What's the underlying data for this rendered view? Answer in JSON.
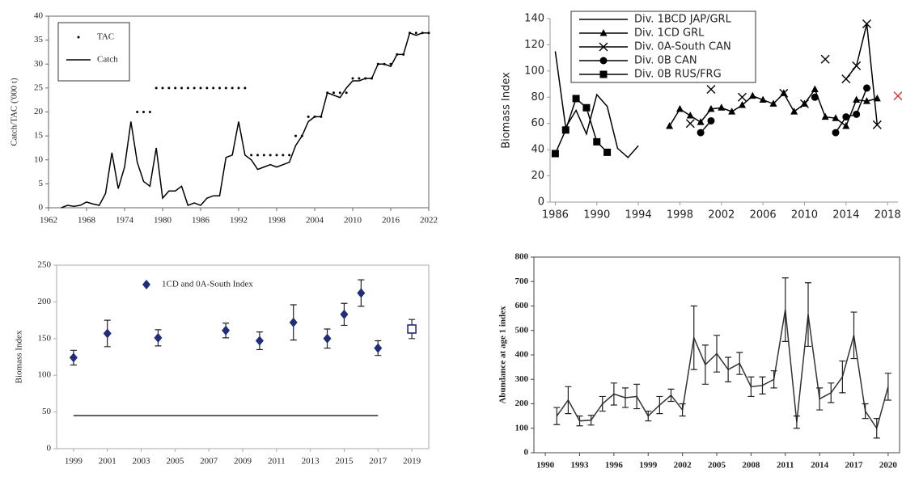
{
  "chart_data": [
    {
      "type": "line",
      "ylabel": "Catch/TAC ('000 t)",
      "legend": "upper-left",
      "xlim": [
        1962,
        2022
      ],
      "xticks": [
        1962,
        1968,
        1974,
        1980,
        1986,
        1992,
        1998,
        2004,
        2010,
        2016,
        2022
      ],
      "ylim": [
        0,
        40
      ],
      "yticks": [
        0,
        5,
        10,
        15,
        20,
        25,
        30,
        35,
        40
      ],
      "series": [
        {
          "name": "TAC",
          "marker": "dot",
          "line": false,
          "color": "#000000",
          "x": [
            1976,
            1977,
            1978,
            1979,
            1980,
            1981,
            1982,
            1983,
            1984,
            1985,
            1986,
            1987,
            1988,
            1989,
            1990,
            1991,
            1992,
            1993,
            1994,
            1995,
            1996,
            1997,
            1998,
            1999,
            2000,
            2001,
            2002,
            2003,
            2004,
            2005,
            2006,
            2007,
            2008,
            2009,
            2010,
            2011,
            2012,
            2013,
            2014,
            2015,
            2016,
            2017,
            2018,
            2019,
            2020,
            2021,
            2022
          ],
          "values": [
            20,
            20,
            20,
            25,
            25,
            25,
            25,
            25,
            25,
            25,
            25,
            25,
            25,
            25,
            25,
            25,
            25,
            25,
            11,
            11,
            11,
            11,
            11,
            11,
            11,
            15,
            15,
            19,
            19,
            19,
            24,
            24,
            24,
            24,
            27,
            27,
            27,
            27,
            30,
            30,
            30,
            32,
            32,
            36.5,
            36.5,
            36.5,
            36.5
          ]
        },
        {
          "name": "Catch",
          "marker": "none",
          "line": true,
          "color": "#000000",
          "x": [
            1964,
            1965,
            1966,
            1967,
            1968,
            1969,
            1970,
            1971,
            1972,
            1973,
            1974,
            1975,
            1976,
            1977,
            1978,
            1979,
            1980,
            1981,
            1982,
            1983,
            1984,
            1985,
            1986,
            1987,
            1988,
            1989,
            1990,
            1991,
            1992,
            1993,
            1994,
            1995,
            1996,
            1997,
            1998,
            1999,
            2000,
            2001,
            2002,
            2003,
            2004,
            2005,
            2006,
            2007,
            2008,
            2009,
            2010,
            2011,
            2012,
            2013,
            2014,
            2015,
            2016,
            2017,
            2018,
            2019,
            2020,
            2021,
            2022
          ],
          "values": [
            0,
            0.5,
            0.3,
            0.5,
            1.2,
            0.8,
            0.5,
            3,
            11.5,
            4,
            8.5,
            18,
            9.5,
            5.5,
            4.5,
            12.5,
            2,
            3.5,
            3.5,
            4.5,
            0.5,
            1,
            0.5,
            2,
            2.5,
            2.5,
            10.5,
            11,
            18,
            11,
            10,
            8,
            8.5,
            9,
            8.5,
            9,
            9.5,
            13,
            15,
            18,
            19,
            19,
            24,
            23.5,
            23,
            25,
            26.5,
            26.5,
            27,
            27,
            30,
            30,
            29.5,
            32,
            32,
            36.5,
            36,
            36.5,
            36.5
          ]
        }
      ]
    },
    {
      "type": "line",
      "ylabel": "Biomass Index",
      "legend": "upper-left",
      "xlim": [
        1985.5,
        2019
      ],
      "xticks": [
        1986,
        1990,
        1994,
        1998,
        2002,
        2006,
        2010,
        2014,
        2018
      ],
      "ylim": [
        0,
        140
      ],
      "yticks": [
        0,
        20,
        40,
        60,
        80,
        100,
        120,
        140
      ],
      "series": [
        {
          "name": "Div. 1BCD JAP/GRL",
          "marker": "none",
          "line": true,
          "color": "#000000",
          "x": [
            1986,
            1987,
            1988,
            1989,
            1990,
            1991,
            1992,
            1993,
            1994
          ],
          "values": [
            115,
            57,
            70,
            52,
            82,
            73,
            41,
            34,
            43
          ]
        },
        {
          "name": "Div. 1CD GRL",
          "marker": "triangle",
          "line": true,
          "color": "#000000",
          "x": [
            1997,
            1998,
            1999,
            2000,
            2001,
            2002,
            2003,
            2004,
            2005,
            2006,
            2007,
            2008,
            2009,
            2010,
            2011,
            2012,
            2013,
            2014,
            2015,
            2016,
            2017
          ],
          "values": [
            58,
            71,
            66,
            61,
            71,
            72,
            69,
            74,
            81,
            78,
            75,
            83,
            69,
            75,
            86,
            65,
            64,
            58,
            78,
            77,
            79
          ]
        },
        {
          "name": "Div. 0A-South CAN",
          "marker": "cross",
          "line": true,
          "color": "#000000",
          "highlight": {
            "index": 20,
            "color": "#e03030"
          },
          "x": [
            1999,
            2000,
            2001,
            2002,
            2003,
            2004,
            2005,
            2006,
            2007,
            2008,
            2009,
            2010,
            2011,
            2012,
            2013,
            2014,
            2015,
            2016,
            2017,
            2018,
            2019
          ],
          "values": [
            60,
            null,
            86,
            null,
            null,
            80,
            null,
            null,
            null,
            83,
            null,
            75,
            null,
            109,
            null,
            94,
            104,
            136,
            59,
            null,
            81
          ]
        },
        {
          "name": "Div. 0B CAN",
          "marker": "circle",
          "line": true,
          "color": "#000000",
          "x": [
            2000,
            2001,
            2002,
            2003,
            2004,
            2005,
            2006,
            2007,
            2008,
            2009,
            2010,
            2011,
            2012,
            2013,
            2014,
            2015,
            2016
          ],
          "values": [
            53,
            62,
            null,
            null,
            null,
            null,
            null,
            null,
            null,
            null,
            null,
            80,
            null,
            53,
            65,
            67,
            87
          ]
        },
        {
          "name": "Div. 0B RUS/FRG",
          "marker": "square",
          "line": true,
          "color": "#000000",
          "x": [
            1986,
            1987,
            1988,
            1989,
            1990,
            1991
          ],
          "values": [
            37,
            55,
            79,
            72,
            46,
            38
          ]
        }
      ]
    },
    {
      "type": "scatter",
      "ylabel": "Biomass Index",
      "legend": "upper-center",
      "xlim": [
        1998,
        2020
      ],
      "xticks": [
        1999,
        2001,
        2003,
        2005,
        2007,
        2009,
        2011,
        2013,
        2015,
        2017,
        2019
      ],
      "ylim": [
        0,
        250
      ],
      "yticks": [
        0,
        50,
        100,
        150,
        200,
        250
      ],
      "series": [
        {
          "name": "1CD and 0A-South Index",
          "marker": "diamond",
          "line": false,
          "color": "#1f2d7a",
          "x": [
            1999,
            2001,
            2004,
            2008,
            2010,
            2012,
            2014,
            2015,
            2016,
            2017
          ],
          "values": [
            124,
            157,
            151,
            161,
            147,
            172,
            150,
            183,
            212,
            137
          ],
          "errors": [
            10,
            18,
            11,
            10,
            12,
            24,
            13,
            15,
            18,
            10
          ]
        }
      ],
      "open_point": {
        "x": 2019,
        "value": 163,
        "error": 13,
        "color": "#1f2d7a"
      },
      "reference_line": {
        "value": 45,
        "x": [
          1999,
          2017
        ]
      }
    },
    {
      "type": "line",
      "ylabel": "Abundance at age 1 index",
      "xlim": [
        1989,
        2021
      ],
      "xticks": [
        1990,
        1993,
        1996,
        1999,
        2002,
        2005,
        2008,
        2011,
        2014,
        2017,
        2020
      ],
      "ylim": [
        0,
        800
      ],
      "yticks": [
        0,
        100,
        200,
        300,
        400,
        500,
        600,
        700,
        800
      ],
      "series": [
        {
          "marker": "none",
          "line": true,
          "color": "#333333",
          "x": [
            1991,
            1992,
            1993,
            1994,
            1995,
            1996,
            1997,
            1998,
            1999,
            2000,
            2001,
            2002,
            2003,
            2004,
            2005,
            2006,
            2007,
            2008,
            2009,
            2010,
            2011,
            2012,
            2013,
            2014,
            2015,
            2016,
            2017,
            2018,
            2019,
            2020
          ],
          "values": [
            150,
            215,
            130,
            133,
            200,
            240,
            225,
            230,
            150,
            195,
            235,
            175,
            470,
            360,
            405,
            340,
            365,
            270,
            275,
            300,
            585,
            125,
            565,
            220,
            245,
            310,
            480,
            170,
            100,
            270
          ],
          "errors": [
            35,
            55,
            20,
            20,
            30,
            45,
            40,
            50,
            20,
            35,
            25,
            25,
            130,
            80,
            75,
            50,
            45,
            40,
            35,
            35,
            130,
            25,
            130,
            45,
            40,
            65,
            95,
            30,
            40,
            55
          ]
        }
      ]
    }
  ]
}
